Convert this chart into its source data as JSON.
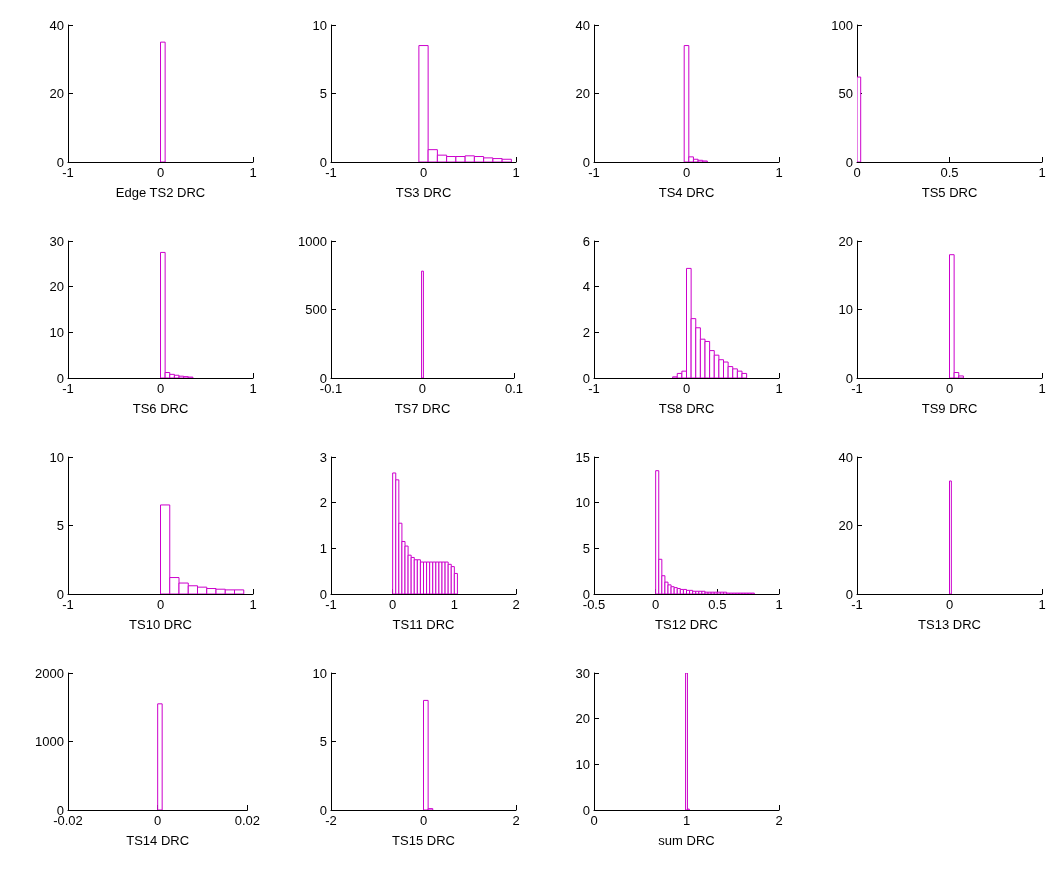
{
  "chart_data": [
    {
      "type": "histogram",
      "xlabel": "Edge TS2 DRC",
      "xlim": [
        -1,
        1
      ],
      "xticks": [
        -1,
        0,
        1
      ],
      "ylim": [
        0,
        40
      ],
      "yticks": [
        0,
        20,
        40
      ],
      "color": "#cc00cc",
      "grid": false,
      "bins": [
        0,
        0.05
      ],
      "values": [
        35
      ]
    },
    {
      "type": "histogram",
      "xlabel": "TS3 DRC",
      "xlim": [
        -1,
        1
      ],
      "xticks": [
        -1,
        0,
        1
      ],
      "ylim": [
        0,
        10
      ],
      "yticks": [
        0,
        5,
        10
      ],
      "color": "#cc00cc",
      "grid": false,
      "bins": [
        -0.05,
        0.05,
        0.15,
        0.25,
        0.35,
        0.45,
        0.55,
        0.65,
        0.75,
        0.85,
        0.95
      ],
      "values": [
        8.5,
        0.9,
        0.5,
        0.4,
        0.4,
        0.45,
        0.4,
        0.3,
        0.25,
        0.2
      ]
    },
    {
      "type": "histogram",
      "xlabel": "TS4 DRC",
      "xlim": [
        -1,
        1
      ],
      "xticks": [
        -1,
        0,
        1
      ],
      "ylim": [
        0,
        40
      ],
      "yticks": [
        0,
        20,
        40
      ],
      "color": "#cc00cc",
      "grid": false,
      "bins": [
        -0.025,
        0.025,
        0.075,
        0.125,
        0.175,
        0.225
      ],
      "values": [
        34,
        1.5,
        0.8,
        0.5,
        0.3
      ]
    },
    {
      "type": "histogram",
      "xlabel": "TS5 DRC",
      "xlim": [
        0,
        1
      ],
      "xticks": [
        0,
        0.5,
        1
      ],
      "ylim": [
        0,
        100
      ],
      "yticks": [
        0,
        50,
        100
      ],
      "color": "#cc00cc",
      "grid": false,
      "bins": [
        0,
        0.02
      ],
      "values": [
        62
      ]
    },
    {
      "type": "histogram",
      "xlabel": "TS6 DRC",
      "xlim": [
        -1,
        1
      ],
      "xticks": [
        -1,
        0,
        1
      ],
      "ylim": [
        0,
        30
      ],
      "yticks": [
        0,
        10,
        20,
        30
      ],
      "color": "#cc00cc",
      "grid": false,
      "bins": [
        0,
        0.05,
        0.1,
        0.15,
        0.2,
        0.25,
        0.3,
        0.35
      ],
      "values": [
        27.5,
        1.2,
        0.8,
        0.6,
        0.4,
        0.3,
        0.2
      ]
    },
    {
      "type": "histogram",
      "xlabel": "TS7 DRC",
      "xlim": [
        -0.1,
        0.1
      ],
      "xticks": [
        -0.1,
        0,
        0.1
      ],
      "ylim": [
        0,
        1000
      ],
      "yticks": [
        0,
        500,
        1000
      ],
      "color": "#cc00cc",
      "grid": false,
      "bins": [
        -0.001,
        0.001
      ],
      "values": [
        780
      ]
    },
    {
      "type": "histogram",
      "xlabel": "TS8 DRC",
      "xlim": [
        -1,
        1
      ],
      "xticks": [
        -1,
        0,
        1
      ],
      "ylim": [
        0,
        6
      ],
      "yticks": [
        0,
        2,
        4,
        6
      ],
      "color": "#cc00cc",
      "grid": false,
      "bins": [
        -0.15,
        -0.1,
        -0.05,
        0,
        0.05,
        0.1,
        0.15,
        0.2,
        0.25,
        0.3,
        0.35,
        0.4,
        0.45,
        0.5,
        0.55,
        0.6,
        0.65
      ],
      "values": [
        0.05,
        0.2,
        0.3,
        4.8,
        2.6,
        2.2,
        1.7,
        1.6,
        1.2,
        1.0,
        0.8,
        0.7,
        0.5,
        0.4,
        0.3,
        0.2
      ]
    },
    {
      "type": "histogram",
      "xlabel": "TS9 DRC",
      "xlim": [
        -1,
        1
      ],
      "xticks": [
        -1,
        0,
        1
      ],
      "ylim": [
        0,
        20
      ],
      "yticks": [
        0,
        10,
        20
      ],
      "color": "#cc00cc",
      "grid": false,
      "bins": [
        0,
        0.05,
        0.1,
        0.15
      ],
      "values": [
        18,
        0.8,
        0.3
      ]
    },
    {
      "type": "histogram",
      "xlabel": "TS10 DRC",
      "xlim": [
        -1,
        1
      ],
      "xticks": [
        -1,
        0,
        1
      ],
      "ylim": [
        0,
        10
      ],
      "yticks": [
        0,
        5,
        10
      ],
      "color": "#cc00cc",
      "grid": false,
      "bins": [
        0,
        0.1,
        0.2,
        0.3,
        0.4,
        0.5,
        0.6,
        0.7,
        0.8,
        0.9
      ],
      "values": [
        6.5,
        1.2,
        0.8,
        0.6,
        0.5,
        0.4,
        0.35,
        0.3,
        0.3
      ]
    },
    {
      "type": "histogram",
      "xlabel": "TS11 DRC",
      "xlim": [
        -1,
        2
      ],
      "xticks": [
        -1,
        0,
        1,
        2
      ],
      "ylim": [
        0,
        3
      ],
      "yticks": [
        0,
        1,
        2,
        3
      ],
      "color": "#cc00cc",
      "grid": false,
      "bins": [
        0,
        0.05,
        0.1,
        0.15,
        0.2,
        0.25,
        0.3,
        0.35,
        0.4,
        0.45,
        0.5,
        0.55,
        0.6,
        0.65,
        0.7,
        0.75,
        0.8,
        0.85,
        0.9,
        0.95,
        1.0,
        1.05
      ],
      "values": [
        2.65,
        2.5,
        1.55,
        1.15,
        1.05,
        0.85,
        0.8,
        0.75,
        0.75,
        0.7,
        0.7,
        0.7,
        0.7,
        0.7,
        0.7,
        0.7,
        0.7,
        0.7,
        0.65,
        0.6,
        0.45
      ]
    },
    {
      "type": "histogram",
      "xlabel": "TS12 DRC",
      "xlim": [
        -0.5,
        1
      ],
      "xticks": [
        -0.5,
        0,
        0.5,
        1
      ],
      "ylim": [
        0,
        15
      ],
      "yticks": [
        0,
        5,
        10,
        15
      ],
      "color": "#cc00cc",
      "grid": false,
      "bins": [
        0,
        0.025,
        0.05,
        0.075,
        0.1,
        0.125,
        0.15,
        0.175,
        0.2,
        0.225,
        0.25,
        0.275,
        0.3,
        0.325,
        0.35,
        0.375,
        0.4,
        0.425,
        0.45,
        0.475,
        0.5,
        0.525,
        0.55,
        0.575,
        0.6,
        0.625,
        0.65,
        0.675,
        0.7,
        0.725,
        0.75,
        0.775,
        0.8
      ],
      "values": [
        13.5,
        3.8,
        2.0,
        1.3,
        1.0,
        0.8,
        0.7,
        0.6,
        0.5,
        0.5,
        0.4,
        0.4,
        0.3,
        0.3,
        0.3,
        0.3,
        0.2,
        0.2,
        0.2,
        0.2,
        0.2,
        0.2,
        0.2,
        0.1,
        0.1,
        0.1,
        0.1,
        0.1,
        0.1,
        0.1,
        0.1,
        0.1
      ]
    },
    {
      "type": "histogram",
      "xlabel": "TS13 DRC",
      "xlim": [
        -1,
        1
      ],
      "xticks": [
        -1,
        0,
        1
      ],
      "ylim": [
        0,
        40
      ],
      "yticks": [
        0,
        20,
        40
      ],
      "color": "#cc00cc",
      "grid": false,
      "bins": [
        0,
        0.02
      ],
      "values": [
        33
      ]
    },
    {
      "type": "histogram",
      "xlabel": "TS14 DRC",
      "xlim": [
        -0.02,
        0.02
      ],
      "xticks": [
        -0.02,
        0,
        0.02
      ],
      "ylim": [
        0,
        2000
      ],
      "yticks": [
        0,
        1000,
        2000
      ],
      "color": "#cc00cc",
      "grid": false,
      "bins": [
        0,
        0.001
      ],
      "values": [
        1550
      ]
    },
    {
      "type": "histogram",
      "xlabel": "TS15 DRC",
      "xlim": [
        -2,
        2
      ],
      "xticks": [
        -2,
        0,
        2
      ],
      "ylim": [
        0,
        10
      ],
      "yticks": [
        0,
        5,
        10
      ],
      "color": "#cc00cc",
      "grid": false,
      "bins": [
        0,
        0.1,
        0.2
      ],
      "values": [
        8,
        0.1
      ]
    },
    {
      "type": "histogram",
      "xlabel": "sum DRC",
      "xlim": [
        0,
        2
      ],
      "xticks": [
        0,
        1,
        2
      ],
      "ylim": [
        0,
        30
      ],
      "yticks": [
        0,
        10,
        20,
        30
      ],
      "color": "#cc00cc",
      "grid": false,
      "bins": [
        0.99,
        1.01,
        1.03
      ],
      "values": [
        30,
        0.2
      ]
    }
  ]
}
